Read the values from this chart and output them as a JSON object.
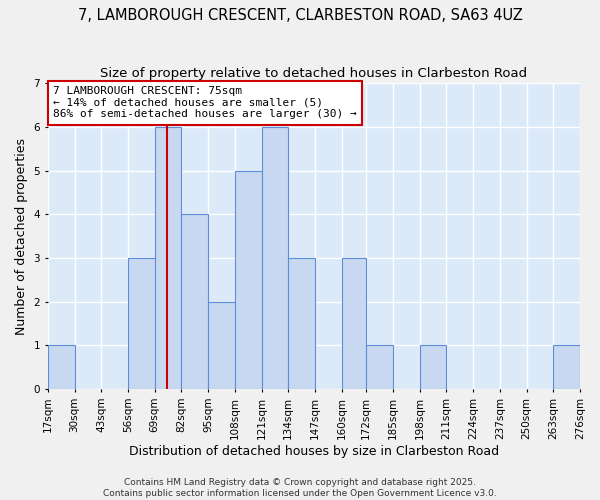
{
  "title1": "7, LAMBOROUGH CRESCENT, CLARBESTON ROAD, SA63 4UZ",
  "title2": "Size of property relative to detached houses in Clarbeston Road",
  "xlabel": "Distribution of detached houses by size in Clarbeston Road",
  "ylabel": "Number of detached properties",
  "bin_labels": [
    "17sqm",
    "30sqm",
    "43sqm",
    "56sqm",
    "69sqm",
    "82sqm",
    "95sqm",
    "108sqm",
    "121sqm",
    "134sqm",
    "147sqm",
    "160sqm",
    "172sqm",
    "185sqm",
    "198sqm",
    "211sqm",
    "224sqm",
    "237sqm",
    "250sqm",
    "263sqm",
    "276sqm"
  ],
  "bin_edges_numeric": [
    17,
    30,
    43,
    56,
    69,
    82,
    95,
    108,
    121,
    134,
    147,
    160,
    172,
    185,
    198,
    211,
    224,
    237,
    250,
    263,
    276
  ],
  "bar_heights": [
    1,
    0,
    0,
    3,
    6,
    4,
    2,
    5,
    6,
    3,
    0,
    3,
    1,
    0,
    1,
    0,
    0,
    0,
    0,
    1,
    0
  ],
  "bar_color": "#c8d8f0",
  "bar_edge_color": "#5b8dd9",
  "bar_edge_width": 0.8,
  "red_line_x": 75,
  "annotation_title": "7 LAMBOROUGH CRESCENT: 75sqm",
  "annotation_line1": "← 14% of detached houses are smaller (5)",
  "annotation_line2": "86% of semi-detached houses are larger (30) →",
  "annotation_box_edge_color": "#cc0000",
  "annotation_box_face_color": "#ffffff",
  "ylim": [
    0,
    7
  ],
  "yticks": [
    0,
    1,
    2,
    3,
    4,
    5,
    6,
    7
  ],
  "plot_bg_color": "#dce9f9",
  "fig_bg_color": "#f0f0f0",
  "grid_color": "#ffffff",
  "title_fontsize": 10.5,
  "subtitle_fontsize": 9.5,
  "axis_label_fontsize": 9,
  "tick_fontsize": 7.5,
  "annotation_fontsize": 8,
  "footer1": "Contains HM Land Registry data © Crown copyright and database right 2025.",
  "footer2": "Contains public sector information licensed under the Open Government Licence v3.0.",
  "footer_fontsize": 6.5
}
